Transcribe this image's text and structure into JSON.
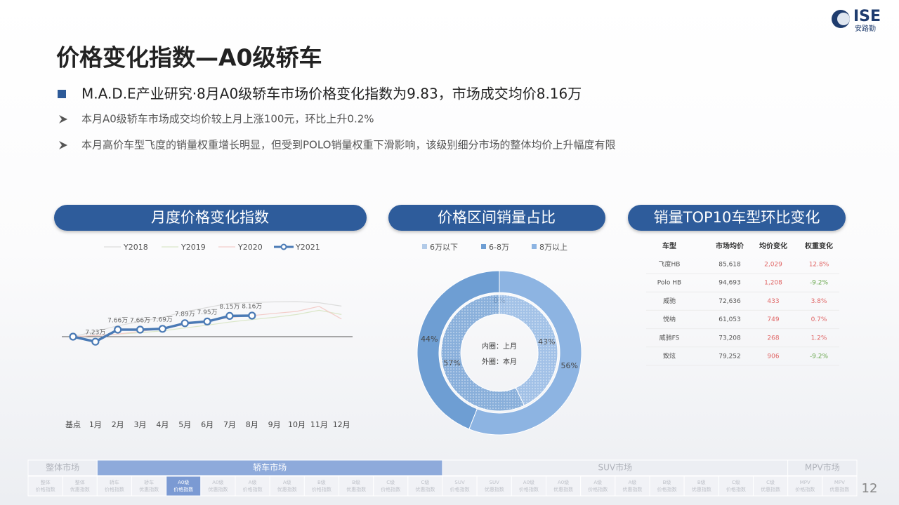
{
  "header": {
    "logo": "ISE",
    "logo_sub": "安路勤",
    "title": "价格变化指数—A0级轿车"
  },
  "bullets": {
    "main": "M.A.D.E产业研究·8月A0级轿车市场价格变化指数为9.83，市场成交均价8.16万",
    "sub": [
      "本月A0级轿车市场成交均价较上月上涨100元，环比上升0.2%",
      "本月高价车型飞度的销量权重增长明显，但受到POLO销量权重下滑影响，该级别细分市场的整体均价上升幅度有限"
    ]
  },
  "panels": [
    "月度价格变化指数",
    "价格区间销量占比",
    "销量TOP10车型环比变化"
  ],
  "chart_data": [
    {
      "type": "line",
      "categories": [
        "基点",
        "1月",
        "2月",
        "3月",
        "4月",
        "5月",
        "6月",
        "7月",
        "8月",
        "9月",
        "10月",
        "11月",
        "12月"
      ],
      "series": [
        {
          "name": "Y2018",
          "color": "#dcdcdc",
          "values": [
            7.41,
            7.6,
            7.8,
            7.95,
            8.1,
            8.3,
            8.45,
            8.6,
            8.63,
            8.65,
            8.66,
            8.62,
            8.5
          ]
        },
        {
          "name": "Y2019",
          "color": "#dbe7c9",
          "values": [
            7.41,
            7.45,
            7.5,
            7.55,
            7.62,
            7.72,
            7.82,
            7.93,
            8.02,
            8.1,
            8.2,
            8.35,
            8.2
          ]
        },
        {
          "name": "Y2020",
          "color": "#f3cdca",
          "values": [
            7.41,
            7.45,
            7.5,
            7.6,
            7.69,
            7.84,
            7.96,
            8.09,
            8.16,
            8.24,
            8.31,
            8.49,
            8.04
          ]
        },
        {
          "name": "Y2021",
          "color": "#4a7ab5",
          "values": [
            7.41,
            7.23,
            7.66,
            7.66,
            7.69,
            7.89,
            7.95,
            8.15,
            8.16,
            null,
            null,
            null,
            null
          ],
          "value_labels": [
            null,
            "7.23万",
            "7.66万",
            "7.66万",
            "7.69万",
            "7.89万",
            "7.95万",
            "8.15万",
            "8.16万",
            null,
            null,
            null,
            null
          ]
        }
      ]
    },
    {
      "type": "pie",
      "categories": [
        "6万以下",
        "6-8万",
        "8万以上"
      ],
      "colors": [
        "#b3cbe8",
        "#6e9ed3",
        "#8db4e2"
      ],
      "series": [
        {
          "values": [
            0,
            44,
            56
          ],
          "value_labels": [
            "0%",
            "44%",
            "56%"
          ]
        },
        {
          "values": [
            0,
            57,
            43
          ],
          "value_labels": [
            "0%",
            "57%",
            "43%"
          ]
        }
      ],
      "annotations": [
        "内圈：上月",
        "外圈：本月"
      ]
    }
  ],
  "table": {
    "header": [
      "车型",
      "市场均价",
      "均价变化",
      "权重变化"
    ],
    "rows": [
      [
        "飞度HB",
        "85,618",
        "2,029",
        "12.8%"
      ],
      [
        "Polo HB",
        "94,693",
        "1,208",
        "-9.2%"
      ],
      [
        "威驰",
        "72,636",
        "433",
        "3.8%"
      ],
      [
        "悦纳",
        "61,053",
        "749",
        "0.7%"
      ],
      [
        "威驰FS",
        "73,208",
        "268",
        "1.2%"
      ],
      [
        "致炫",
        "79,252",
        "906",
        "-9.2%"
      ]
    ]
  },
  "nav": {
    "groups": [
      {
        "label": "整体市场",
        "items": [
          {
            "top": "整体",
            "bottom": "价格指数"
          },
          {
            "top": "整体",
            "bottom": "优惠指数"
          }
        ]
      },
      {
        "label": "轿车市场",
        "active": true,
        "items": [
          {
            "top": "轿车",
            "bottom": "价格指数"
          },
          {
            "top": "轿车",
            "bottom": "优惠指数"
          },
          {
            "top": "A0级",
            "bottom": "价格指数",
            "active": true
          },
          {
            "top": "A0级",
            "bottom": "优惠指数"
          },
          {
            "top": "A级",
            "bottom": "价格指数"
          },
          {
            "top": "A级",
            "bottom": "优惠指数"
          },
          {
            "top": "B级",
            "bottom": "价格指数"
          },
          {
            "top": "B级",
            "bottom": "优惠指数"
          },
          {
            "top": "C级",
            "bottom": "价格指数"
          },
          {
            "top": "C级",
            "bottom": "优惠指数"
          }
        ]
      },
      {
        "label": "SUV市场",
        "items": [
          {
            "top": "SUV",
            "bottom": "价格指数"
          },
          {
            "top": "SUV",
            "bottom": "优惠指数"
          },
          {
            "top": "A0级",
            "bottom": "价格指数"
          },
          {
            "top": "A0级",
            "bottom": "优惠指数"
          },
          {
            "top": "A级",
            "bottom": "价格指数"
          },
          {
            "top": "A级",
            "bottom": "优惠指数"
          },
          {
            "top": "B级",
            "bottom": "价格指数"
          },
          {
            "top": "B级",
            "bottom": "优惠指数"
          },
          {
            "top": "C级",
            "bottom": "价格指数"
          },
          {
            "top": "C级",
            "bottom": "优惠指数"
          }
        ]
      },
      {
        "label": "MPV市场",
        "items": [
          {
            "top": "MPV",
            "bottom": "价格指数"
          },
          {
            "top": "MPV",
            "bottom": "优惠指数"
          }
        ]
      }
    ]
  },
  "page_number": "12"
}
